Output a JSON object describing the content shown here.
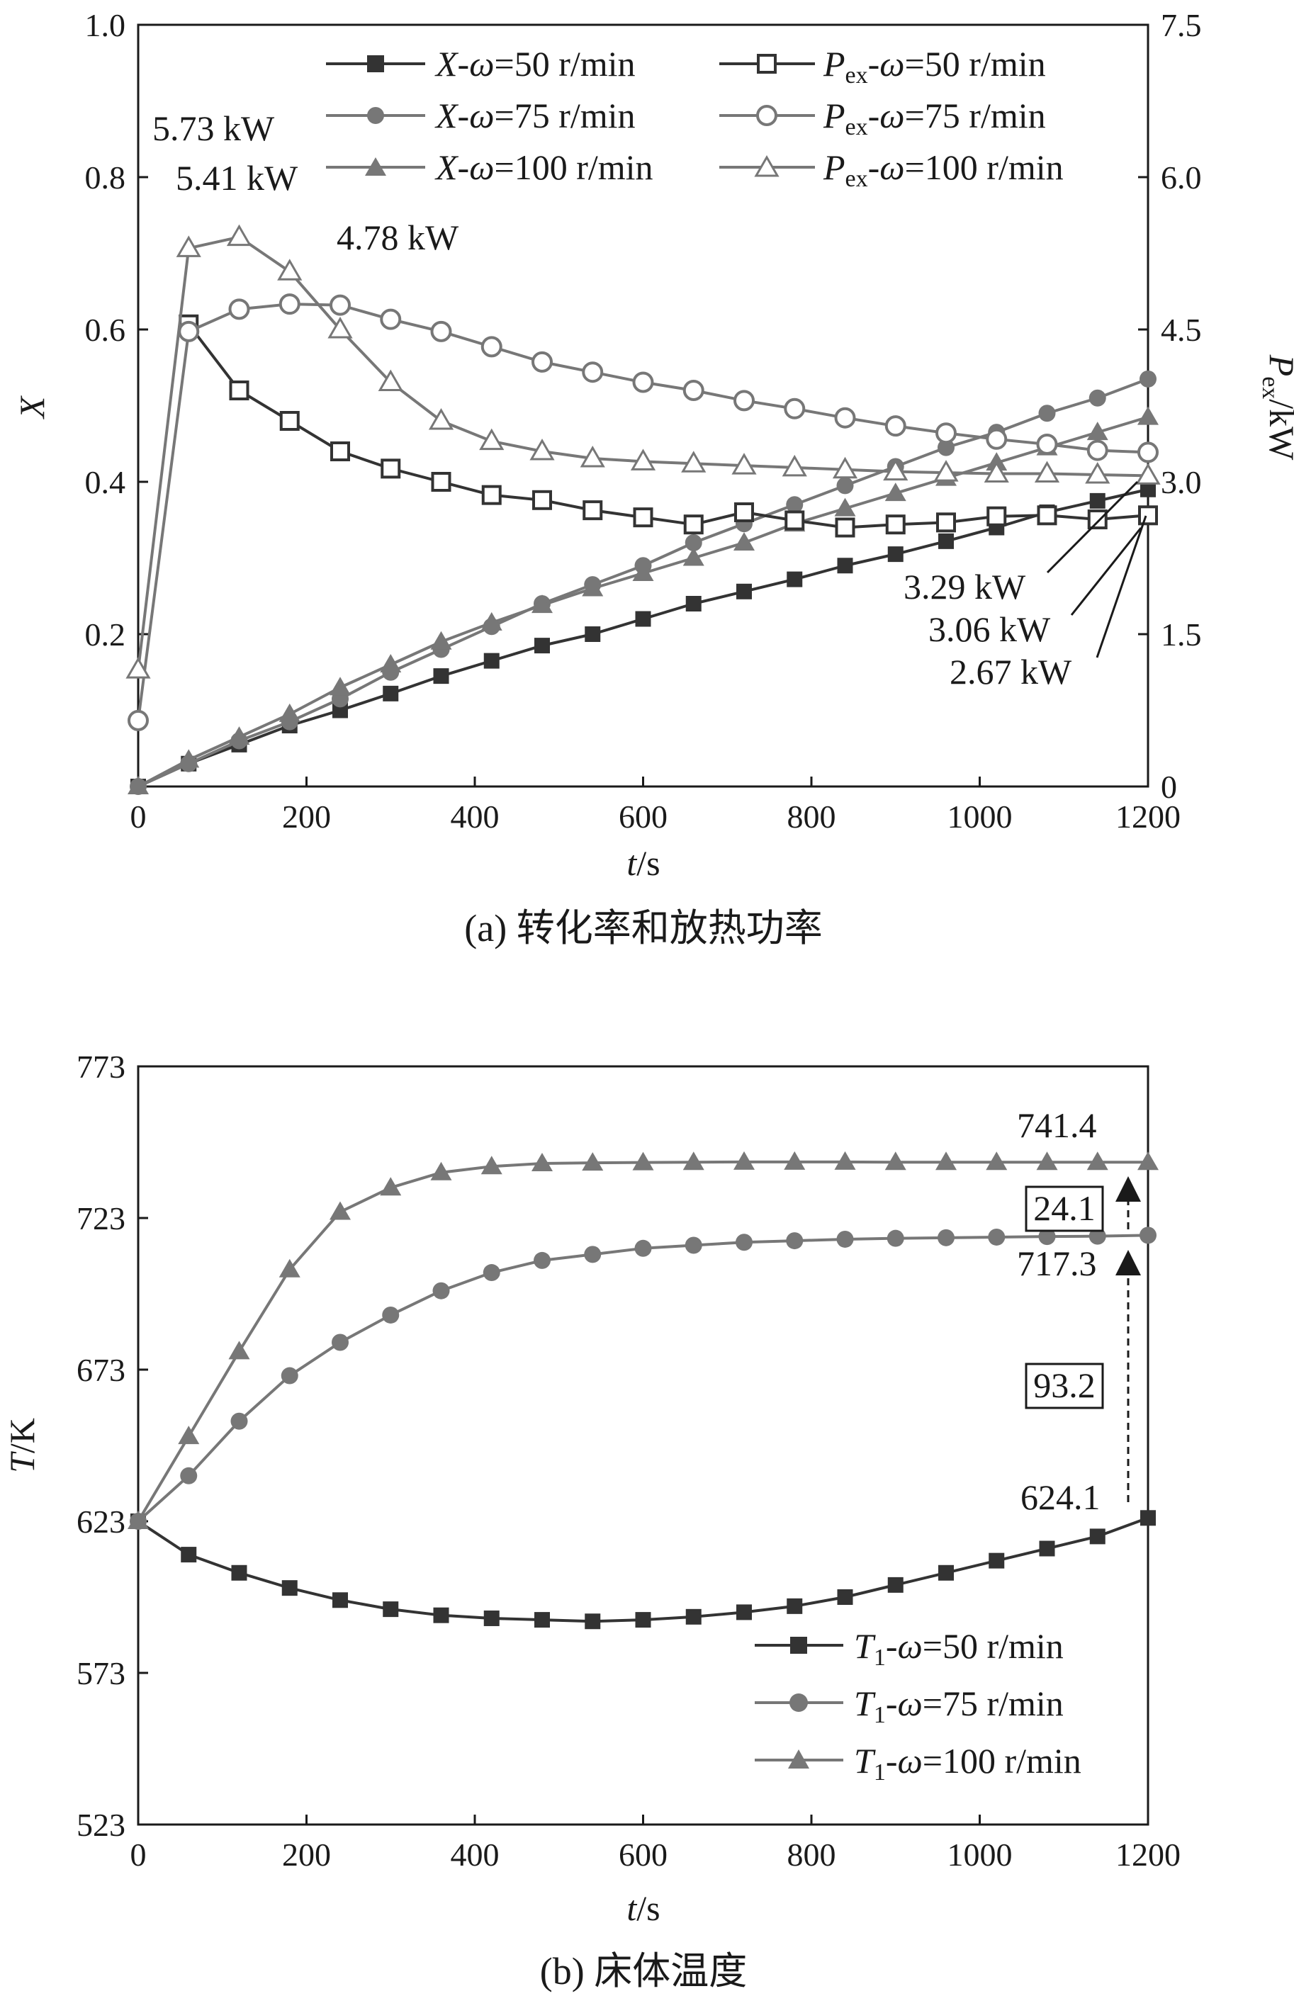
{
  "chart_data": [
    {
      "id": "a",
      "type": "line",
      "caption": "(a) 转化率和放热功率",
      "xlabel": "t/s",
      "ylabel_left": "X",
      "ylabel_right": "Pex/kW",
      "xlim": [
        0,
        1200
      ],
      "ylim_left": [
        0,
        1.0
      ],
      "ylim_right": [
        0,
        7.5
      ],
      "xticks": [
        "0",
        "200",
        "400",
        "600",
        "800",
        "1000",
        "1200"
      ],
      "yticks_left": [
        "0.2",
        "0.4",
        "0.6",
        "0.8",
        "1.0"
      ],
      "yticks_right": [
        "0",
        "1.5",
        "3.0",
        "4.5",
        "6.0",
        "7.5"
      ],
      "legend": [
        {
          "label": "X-ω=50 r/min",
          "marker": "square-filled",
          "color": "#333333"
        },
        {
          "label": "X-ω=75 r/min",
          "marker": "circle-filled",
          "color": "#777777"
        },
        {
          "label": "X-ω=100 r/min",
          "marker": "triangle-filled",
          "color": "#777777"
        },
        {
          "label": "Pex-ω=50 r/min",
          "marker": "square-open",
          "color": "#333333"
        },
        {
          "label": "Pex-ω=75 r/min",
          "marker": "circle-open",
          "color": "#777777"
        },
        {
          "label": "Pex-ω=100 r/min",
          "marker": "triangle-open",
          "color": "#777777"
        }
      ],
      "series": [
        {
          "name": "X-ω=50 r/min",
          "axis": "left",
          "x": [
            0,
            60,
            120,
            180,
            240,
            300,
            360,
            420,
            480,
            540,
            600,
            660,
            720,
            780,
            840,
            900,
            960,
            1020,
            1080,
            1140,
            1200
          ],
          "values": [
            0.0,
            0.03,
            0.055,
            0.08,
            0.1,
            0.122,
            0.145,
            0.165,
            0.185,
            0.2,
            0.22,
            0.24,
            0.256,
            0.272,
            0.29,
            0.305,
            0.322,
            0.34,
            0.36,
            0.375,
            0.39
          ]
        },
        {
          "name": "X-ω=75 r/min",
          "axis": "left",
          "x": [
            0,
            60,
            120,
            180,
            240,
            300,
            360,
            420,
            480,
            540,
            600,
            660,
            720,
            780,
            840,
            900,
            960,
            1020,
            1080,
            1140,
            1200
          ],
          "values": [
            0.0,
            0.03,
            0.06,
            0.085,
            0.115,
            0.15,
            0.18,
            0.21,
            0.24,
            0.265,
            0.29,
            0.32,
            0.345,
            0.37,
            0.395,
            0.42,
            0.445,
            0.465,
            0.49,
            0.51,
            0.535
          ]
        },
        {
          "name": "X-ω=100 r/min",
          "axis": "left",
          "x": [
            0,
            60,
            120,
            180,
            240,
            300,
            360,
            420,
            480,
            540,
            600,
            660,
            720,
            780,
            840,
            900,
            960,
            1020,
            1080,
            1140,
            1200
          ],
          "values": [
            0.0,
            0.035,
            0.065,
            0.095,
            0.13,
            0.16,
            0.19,
            0.215,
            0.238,
            0.26,
            0.28,
            0.3,
            0.32,
            0.345,
            0.365,
            0.385,
            0.405,
            0.425,
            0.445,
            0.465,
            0.485
          ]
        },
        {
          "name": "Pex-ω=50 r/min",
          "axis": "right",
          "x": [
            60,
            120,
            180,
            240,
            300,
            360,
            420,
            480,
            540,
            600,
            660,
            720,
            780,
            840,
            900,
            960,
            1020,
            1080,
            1140,
            1200
          ],
          "values": [
            4.55,
            3.9,
            3.6,
            3.3,
            3.13,
            3.0,
            2.87,
            2.82,
            2.72,
            2.65,
            2.58,
            2.7,
            2.62,
            2.55,
            2.58,
            2.6,
            2.66,
            2.67,
            2.63,
            2.67
          ]
        },
        {
          "name": "Pex-ω=75 r/min",
          "axis": "right",
          "x": [
            0,
            60,
            120,
            180,
            240,
            300,
            360,
            420,
            480,
            540,
            600,
            660,
            720,
            780,
            840,
            900,
            960,
            1020,
            1080,
            1140,
            1200
          ],
          "values": [
            0.65,
            4.48,
            4.7,
            4.75,
            4.74,
            4.6,
            4.48,
            4.33,
            4.18,
            4.08,
            3.98,
            3.9,
            3.8,
            3.72,
            3.63,
            3.55,
            3.48,
            3.42,
            3.37,
            3.31,
            3.29
          ]
        },
        {
          "name": "Pex-ω=100 r/min",
          "axis": "right",
          "x": [
            0,
            60,
            120,
            180,
            240,
            300,
            360,
            420,
            480,
            540,
            600,
            660,
            720,
            780,
            840,
            900,
            960,
            1020,
            1080,
            1140,
            1200
          ],
          "values": [
            1.15,
            5.3,
            5.41,
            5.07,
            4.5,
            3.98,
            3.6,
            3.4,
            3.3,
            3.23,
            3.2,
            3.18,
            3.16,
            3.14,
            3.12,
            3.1,
            3.09,
            3.08,
            3.08,
            3.07,
            3.06
          ]
        }
      ],
      "annotations": [
        "5.73 kW",
        "5.41 kW",
        "4.78 kW",
        "3.29 kW",
        "3.06 kW",
        "2.67 kW"
      ]
    },
    {
      "id": "b",
      "type": "line",
      "caption": "(b) 床体温度",
      "xlabel": "t/s",
      "ylabel": "T/K",
      "xlim": [
        0,
        1200
      ],
      "ylim": [
        523,
        773
      ],
      "xticks": [
        "0",
        "200",
        "400",
        "600",
        "800",
        "1000",
        "1200"
      ],
      "yticks": [
        "523",
        "573",
        "623",
        "673",
        "723",
        "773"
      ],
      "legend": [
        {
          "label": "T1-ω=50 r/min",
          "marker": "square-filled",
          "color": "#333333"
        },
        {
          "label": "T1-ω=75 r/min",
          "marker": "circle-filled",
          "color": "#777777"
        },
        {
          "label": "T1-ω=100 r/min",
          "marker": "triangle-filled",
          "color": "#777777"
        }
      ],
      "series": [
        {
          "name": "T1-ω=50 r/min",
          "x": [
            0,
            60,
            120,
            180,
            240,
            300,
            360,
            420,
            480,
            540,
            600,
            660,
            720,
            780,
            840,
            900,
            960,
            1020,
            1080,
            1140,
            1200
          ],
          "values": [
            623,
            612,
            606,
            601,
            597,
            594,
            592,
            591,
            590.5,
            590,
            590.5,
            591.5,
            593,
            595,
            598,
            602,
            606,
            610,
            614,
            618,
            624.1
          ]
        },
        {
          "name": "T1-ω=75 r/min",
          "x": [
            0,
            60,
            120,
            180,
            240,
            300,
            360,
            420,
            480,
            540,
            600,
            660,
            720,
            780,
            840,
            900,
            960,
            1020,
            1080,
            1140,
            1200
          ],
          "values": [
            623,
            638,
            656,
            671,
            682,
            691,
            699,
            705,
            709,
            711,
            713,
            714,
            715,
            715.5,
            716,
            716.3,
            716.5,
            716.7,
            716.9,
            717,
            717.3
          ]
        },
        {
          "name": "T1-ω=100 r/min",
          "x": [
            0,
            60,
            120,
            180,
            240,
            300,
            360,
            420,
            480,
            540,
            600,
            660,
            720,
            780,
            840,
            900,
            960,
            1020,
            1080,
            1140,
            1200
          ],
          "values": [
            623,
            651,
            679,
            706,
            725,
            733,
            738,
            740,
            741,
            741.2,
            741.3,
            741.4,
            741.5,
            741.5,
            741.5,
            741.4,
            741.4,
            741.4,
            741.4,
            741.4,
            741.4
          ]
        }
      ],
      "annotations": {
        "top_value": "741.4",
        "mid_value": "717.3",
        "low_value": "624.1",
        "diff_upper": "24.1",
        "diff_lower": "93.2"
      }
    }
  ]
}
